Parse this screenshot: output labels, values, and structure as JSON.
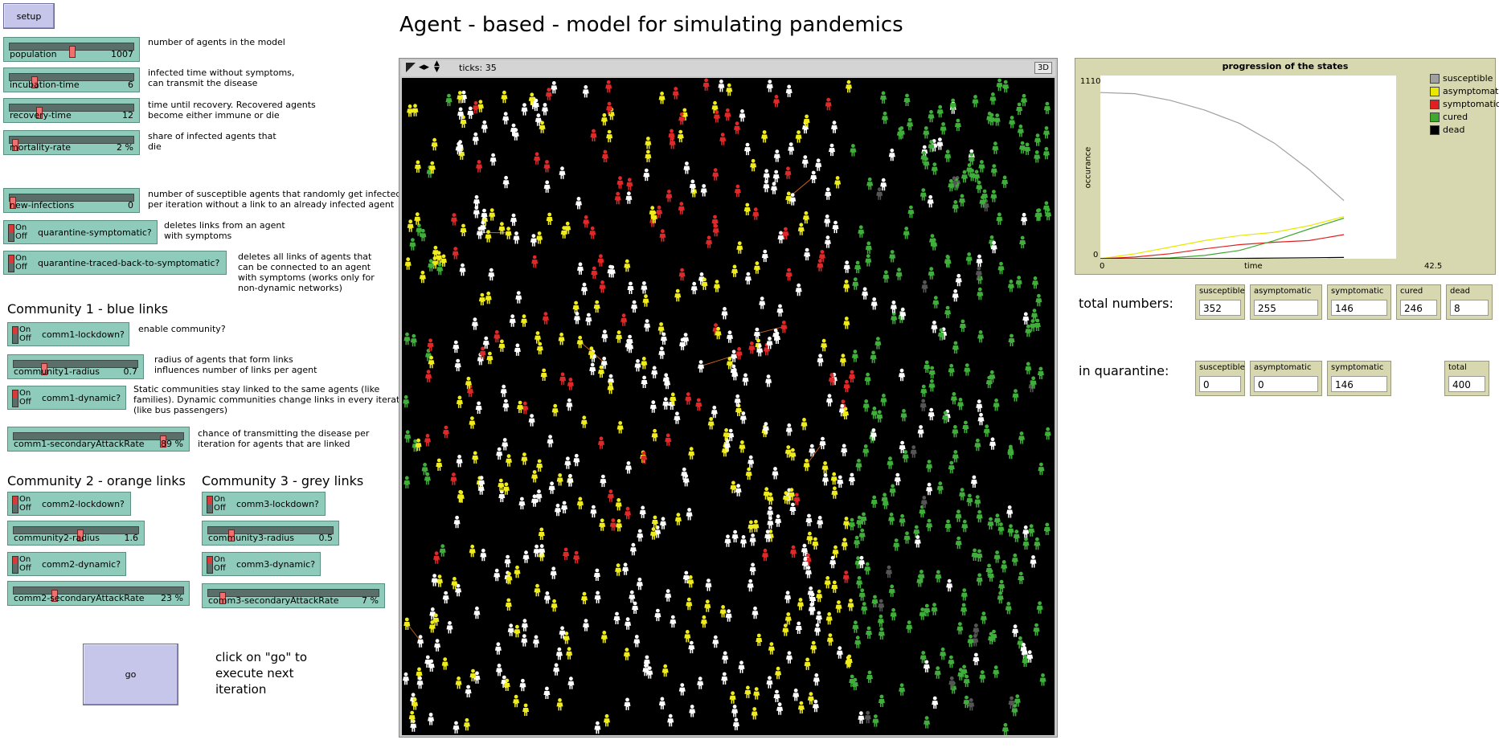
{
  "title": "Agent - based - model for simulating pandemics",
  "buttons": {
    "setup": "setup",
    "go": "go"
  },
  "sliders": {
    "population": {
      "label": "population",
      "value": "1007",
      "fraction": 0.5
    },
    "incubation": {
      "label": "incubation-time",
      "value": "6",
      "fraction": 0.18
    },
    "recovery": {
      "label": "recovery-time",
      "value": "12",
      "fraction": 0.22
    },
    "mortality": {
      "label": "mortality-rate",
      "value": "2 %",
      "fraction": 0.02
    },
    "new_infections": {
      "label": "new-infections",
      "value": "0",
      "fraction": 0.0
    },
    "c1_radius": {
      "label": "community1-radius",
      "value": "0.7",
      "fraction": 0.23
    },
    "c1_attack": {
      "label": "comm1-secondaryAttackRate",
      "value": "89 %",
      "fraction": 0.89
    },
    "c2_radius": {
      "label": "community2-radius",
      "value": "1.6",
      "fraction": 0.53
    },
    "c2_attack": {
      "label": "comm2-secondaryAttackRate",
      "value": "23 %",
      "fraction": 0.23
    },
    "c3_radius": {
      "label": "community3-radius",
      "value": "0.5",
      "fraction": 0.17
    },
    "c3_attack": {
      "label": "comm3-secondaryAttackRate",
      "value": "7 %",
      "fraction": 0.07
    }
  },
  "switches": {
    "on": "On",
    "off": "Off",
    "q_symptomatic": "quarantine-symptomatic?",
    "q_traced": "quarantine-traced-back-to-symptomatic?",
    "c1_lockdown": "comm1-lockdown?",
    "c1_dynamic": "comm1-dynamic?",
    "c2_lockdown": "comm2-lockdown?",
    "c2_dynamic": "comm2-dynamic?",
    "c3_lockdown": "comm3-lockdown?",
    "c3_dynamic": "comm3-dynamic?"
  },
  "notes": {
    "population": "number of agents in the model",
    "incubation": "infected time without symptoms,\ncan transmit the disease",
    "recovery": "time until recovery. Recovered agents\nbecome either immune or die",
    "mortality": "share of infected agents that\ndie",
    "new_infections": "number of susceptible agents that randomly get infected\nper iteration without a link to an already infected agent",
    "q_symptomatic": "deletes links from an agent\nwith symptoms",
    "q_traced": "deletes all links of agents that\ncan be connected to an agent\nwith symptoms (works only for\nnon-dynamic networks)",
    "c1_lockdown": "enable community?",
    "c1_radius": "radius of agents that form links\ninfluences number of links per agent",
    "c1_dynamic": "Static communities stay linked to the same agents (like\nfamilies). Dynamic communities change links in every iteration\n(like bus passengers)",
    "c1_attack": "chance of transmitting the disease per\niteration for agents that are linked",
    "go": "click on \"go\" to\nexecute next\niteration"
  },
  "headers": {
    "community1": "Community 1 - blue links",
    "community2": "Community 2 - orange links",
    "community3": "Community 3 - grey links"
  },
  "world": {
    "ticks_label": "ticks: 35",
    "btn_3d": "3D"
  },
  "plot": {
    "title": "progression of the states",
    "ylabel": "occurance",
    "xlabel": "time",
    "ymax_label": "1110",
    "ymin_label": "0",
    "xmin_label": "0",
    "xmax_label": "42.5"
  },
  "chart_data": {
    "type": "line",
    "title": "progression of the states",
    "xlabel": "time",
    "ylabel": "occurance",
    "xlim": [
      0,
      42.5
    ],
    "ylim": [
      0,
      1110
    ],
    "x": [
      0,
      5,
      10,
      15,
      20,
      25,
      30,
      35
    ],
    "series": [
      {
        "name": "susceptible",
        "color": "#a0a0a0",
        "values": [
          1007,
          1000,
          960,
          900,
          820,
          700,
          540,
          352
        ]
      },
      {
        "name": "asymptomatic",
        "color": "#e8e800",
        "values": [
          0,
          30,
          70,
          110,
          140,
          160,
          200,
          255
        ]
      },
      {
        "name": "symptomatic",
        "color": "#e02020",
        "values": [
          0,
          10,
          30,
          60,
          85,
          100,
          110,
          146
        ]
      },
      {
        "name": "cured",
        "color": "#40a830",
        "values": [
          0,
          0,
          5,
          20,
          50,
          110,
          180,
          246
        ]
      },
      {
        "name": "dead",
        "color": "#000000",
        "values": [
          0,
          0,
          0,
          1,
          2,
          4,
          6,
          8
        ]
      }
    ]
  },
  "totals": {
    "label": "total numbers:",
    "items": [
      {
        "label": "susceptible",
        "value": "352"
      },
      {
        "label": "asymptomatic",
        "value": "255"
      },
      {
        "label": "symptomatic",
        "value": "146"
      },
      {
        "label": "cured",
        "value": "246"
      },
      {
        "label": "dead",
        "value": "8"
      }
    ]
  },
  "quarantine": {
    "label": "in quarantine:",
    "items": [
      {
        "label": "susceptible",
        "value": "0"
      },
      {
        "label": "asymptomatic",
        "value": "0"
      },
      {
        "label": "symptomatic",
        "value": "146"
      },
      {
        "label": "total",
        "value": "400"
      }
    ]
  }
}
